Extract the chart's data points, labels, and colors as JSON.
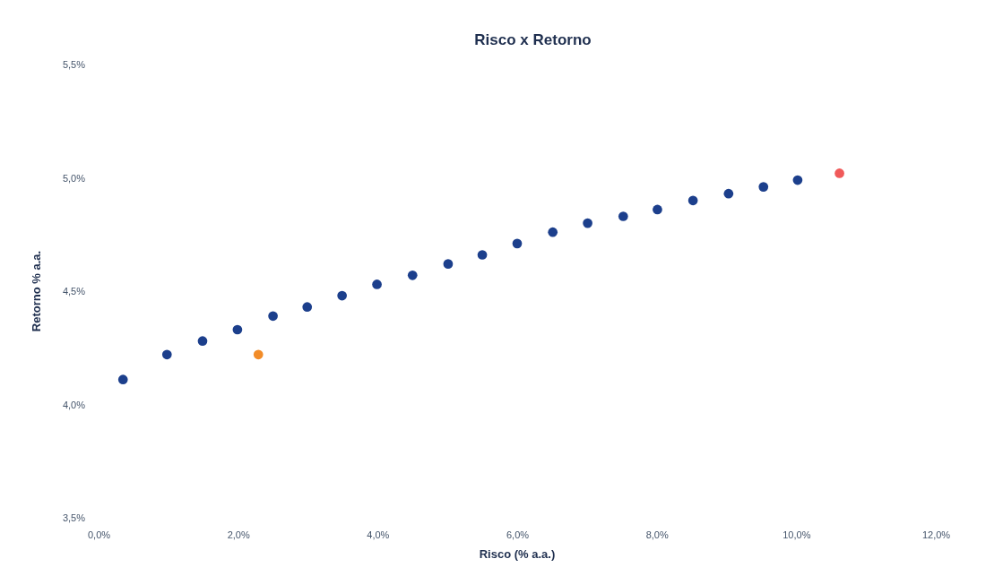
{
  "chart_data": {
    "type": "scatter",
    "title": "Risco x Retorno",
    "xlabel": "Risco (% a.a.)",
    "ylabel": "Retorno % a.a.",
    "xlim": [
      0,
      12
    ],
    "ylim": [
      3.5,
      5.5
    ],
    "xticks": [
      {
        "value": 0,
        "label": "0,0%"
      },
      {
        "value": 2,
        "label": "2,0%"
      },
      {
        "value": 4,
        "label": "4,0%"
      },
      {
        "value": 6,
        "label": "6,0%"
      },
      {
        "value": 8,
        "label": "8,0%"
      },
      {
        "value": 10,
        "label": "10,0%"
      },
      {
        "value": 12,
        "label": "12,0%"
      }
    ],
    "yticks": [
      {
        "value": 3.5,
        "label": "3,5%"
      },
      {
        "value": 4,
        "label": "4,0%"
      },
      {
        "value": 4.5,
        "label": "4,5%"
      },
      {
        "value": 5,
        "label": "5,0%"
      },
      {
        "value": 5.5,
        "label": "5,5%"
      }
    ],
    "marker": "circle",
    "series": [
      {
        "color": "#1c3f8c",
        "x": [
          0.35,
          0.98,
          1.49,
          1.99,
          2.5,
          2.99,
          3.49,
          3.99,
          4.5,
          5.01,
          5.5,
          6.0,
          6.51,
          7.01,
          7.52,
          8.01,
          8.52,
          9.03,
          9.53,
          10.02
        ],
        "values": [
          4.11,
          4.22,
          4.28,
          4.33,
          4.39,
          4.43,
          4.48,
          4.53,
          4.57,
          4.62,
          4.66,
          4.71,
          4.76,
          4.8,
          4.83,
          4.86,
          4.9,
          4.93,
          4.96,
          4.99
        ]
      },
      {
        "color": "#f28c28",
        "x": [
          2.29
        ],
        "values": [
          4.22
        ]
      },
      {
        "color": "#f05a5a",
        "x": [
          10.62
        ],
        "values": [
          5.02
        ]
      }
    ]
  }
}
